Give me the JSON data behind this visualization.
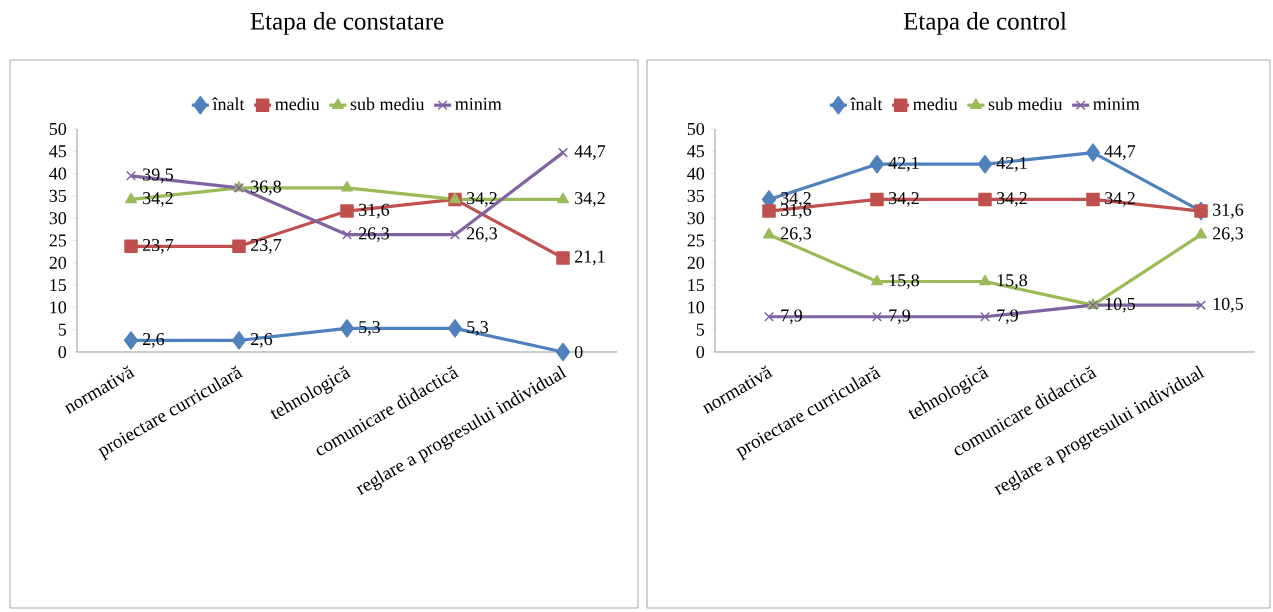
{
  "chart_data": [
    {
      "type": "line",
      "title": "Etapa de constatare",
      "categories": [
        "normativă",
        "proiectare curriculară",
        "tehnologică",
        "comunicare didactică",
        "reglare a progresului individual"
      ],
      "ylim": [
        0,
        50
      ],
      "yticks": [
        0,
        5,
        10,
        15,
        20,
        25,
        30,
        35,
        40,
        45,
        50
      ],
      "legend": "top",
      "series": [
        {
          "name": "înalt",
          "color": "#4f81bd",
          "marker": "diamond",
          "values": [
            2.6,
            2.6,
            5.3,
            5.3,
            0
          ],
          "value_labels": [
            "2,6",
            "2,6",
            "5,3",
            "5,3",
            "0"
          ]
        },
        {
          "name": "mediu",
          "color": "#c0504d",
          "marker": "square",
          "values": [
            23.7,
            23.7,
            31.6,
            34.2,
            21.1
          ],
          "value_labels": [
            "23,7",
            "23,7",
            "31,6",
            null,
            "21,1"
          ]
        },
        {
          "name": "sub mediu",
          "color": "#9bbb59",
          "marker": "triangle",
          "values": [
            34.2,
            36.8,
            36.8,
            34.2,
            34.2
          ],
          "value_labels": [
            "34,2",
            null,
            null,
            "34,2",
            "34,2"
          ]
        },
        {
          "name": "minim",
          "color": "#8064a2",
          "marker": "cross",
          "values": [
            39.5,
            36.8,
            26.3,
            26.3,
            44.7
          ],
          "value_labels": [
            "39,5",
            "36,8",
            "26,3",
            "26,3",
            "44,7"
          ]
        }
      ]
    },
    {
      "type": "line",
      "title": "Etapa de control",
      "categories": [
        "normativă",
        "proiectare curriculară",
        "tehnologică",
        "comunicare didactică",
        "reglare a progresului individual"
      ],
      "ylim": [
        0,
        50
      ],
      "yticks": [
        0,
        5,
        10,
        15,
        20,
        25,
        30,
        35,
        40,
        45,
        50
      ],
      "legend": "top",
      "series": [
        {
          "name": "înalt",
          "color": "#4f81bd",
          "marker": "diamond",
          "values": [
            34.2,
            42.1,
            42.1,
            44.7,
            31.6
          ],
          "value_labels": [
            "34,2",
            "42,1",
            "42,1",
            "44,7",
            null
          ]
        },
        {
          "name": "mediu",
          "color": "#c0504d",
          "marker": "square",
          "values": [
            31.6,
            34.2,
            34.2,
            34.2,
            31.6
          ],
          "value_labels": [
            "31,6",
            "34,2",
            "34,2",
            "34,2",
            "31,6"
          ]
        },
        {
          "name": "sub mediu",
          "color": "#9bbb59",
          "marker": "triangle",
          "values": [
            26.3,
            15.8,
            15.8,
            10.5,
            26.3
          ],
          "value_labels": [
            "26,3",
            "15,8",
            "15,8",
            null,
            "26,3"
          ]
        },
        {
          "name": "minim",
          "color": "#8064a2",
          "marker": "cross",
          "values": [
            7.9,
            7.9,
            7.9,
            10.5,
            10.5
          ],
          "value_labels": [
            "7,9",
            "7,9",
            "7,9",
            "10,5",
            "10,5"
          ]
        }
      ]
    }
  ]
}
